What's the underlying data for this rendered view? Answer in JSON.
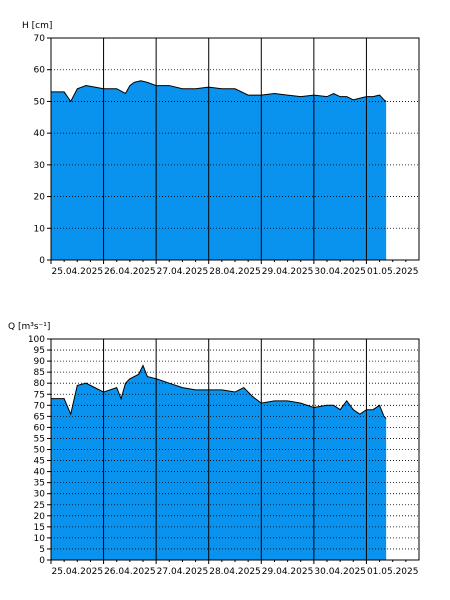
{
  "chart_data": [
    {
      "type": "area",
      "ylabel": "H [cm]",
      "ylim": [
        0,
        70
      ],
      "yticks": [
        0,
        10,
        20,
        30,
        40,
        50,
        60,
        70
      ],
      "xlim": [
        "2025-04-25T00:00",
        "2025-05-02T00:00"
      ],
      "xtick_labels": [
        "25.04.2025",
        "26.04.2025",
        "27.04.2025",
        "28.04.2025",
        "29.04.2025",
        "30.04.2025",
        "01.05.2025"
      ],
      "grid": true,
      "fill_color": "#0a93ee",
      "line_color": "#000000",
      "x": [
        "2025-04-25T00:00",
        "2025-04-25T06:00",
        "2025-04-25T09:00",
        "2025-04-25T12:00",
        "2025-04-25T16:00",
        "2025-04-25T20:00",
        "2025-04-26T00:00",
        "2025-04-26T06:00",
        "2025-04-26T10:00",
        "2025-04-26T12:00",
        "2025-04-26T14:00",
        "2025-04-26T17:00",
        "2025-04-26T20:00",
        "2025-04-27T00:00",
        "2025-04-27T06:00",
        "2025-04-27T12:00",
        "2025-04-27T18:00",
        "2025-04-28T00:00",
        "2025-04-28T06:00",
        "2025-04-28T12:00",
        "2025-04-28T18:00",
        "2025-04-29T00:00",
        "2025-04-29T06:00",
        "2025-04-29T12:00",
        "2025-04-29T18:00",
        "2025-04-30T00:00",
        "2025-04-30T06:00",
        "2025-04-30T09:00",
        "2025-04-30T12:00",
        "2025-04-30T15:00",
        "2025-04-30T18:00",
        "2025-04-30T21:00",
        "2025-05-01T00:00",
        "2025-05-01T03:00",
        "2025-05-01T06:00",
        "2025-05-01T08:00",
        "2025-05-01T09:00"
      ],
      "y": [
        53,
        53,
        50,
        54,
        55,
        54.5,
        54,
        54,
        52.5,
        55,
        56,
        56.5,
        56,
        55,
        55,
        54,
        54,
        54.5,
        54,
        54,
        52,
        52,
        52.5,
        52,
        51.5,
        52,
        51.5,
        52.5,
        51.5,
        51.5,
        50.5,
        51,
        51.5,
        51.5,
        52,
        50.5,
        50
      ]
    },
    {
      "type": "area",
      "ylabel": "Q [m³s⁻¹]",
      "ylim": [
        0,
        100
      ],
      "yticks": [
        0,
        5,
        10,
        15,
        20,
        25,
        30,
        35,
        40,
        45,
        50,
        55,
        60,
        65,
        70,
        75,
        80,
        85,
        90,
        95,
        100
      ],
      "xlim": [
        "2025-04-25T00:00",
        "2025-05-02T00:00"
      ],
      "xtick_labels": [
        "25.04.2025",
        "26.04.2025",
        "27.04.2025",
        "28.04.2025",
        "29.04.2025",
        "30.04.2025",
        "01.05.2025"
      ],
      "grid": true,
      "fill_color": "#0a93ee",
      "line_color": "#000000",
      "x": [
        "2025-04-25T00:00",
        "2025-04-25T06:00",
        "2025-04-25T09:00",
        "2025-04-25T12:00",
        "2025-04-25T16:00",
        "2025-04-25T20:00",
        "2025-04-26T00:00",
        "2025-04-26T06:00",
        "2025-04-26T08:00",
        "2025-04-26T10:00",
        "2025-04-26T12:00",
        "2025-04-26T16:00",
        "2025-04-26T18:00",
        "2025-04-26T20:00",
        "2025-04-27T00:00",
        "2025-04-27T06:00",
        "2025-04-27T12:00",
        "2025-04-27T18:00",
        "2025-04-28T00:00",
        "2025-04-28T06:00",
        "2025-04-28T12:00",
        "2025-04-28T16:00",
        "2025-04-28T20:00",
        "2025-04-29T00:00",
        "2025-04-29T06:00",
        "2025-04-29T12:00",
        "2025-04-29T18:00",
        "2025-04-30T00:00",
        "2025-04-30T06:00",
        "2025-04-30T09:00",
        "2025-04-30T12:00",
        "2025-04-30T15:00",
        "2025-04-30T18:00",
        "2025-04-30T21:00",
        "2025-05-01T00:00",
        "2025-05-01T03:00",
        "2025-05-01T06:00",
        "2025-05-01T08:00",
        "2025-05-01T09:00"
      ],
      "y": [
        73,
        73,
        66,
        79,
        80,
        78,
        76,
        78,
        73,
        80,
        82,
        84,
        88,
        83,
        82,
        80,
        78,
        77,
        77,
        77,
        76,
        78,
        74,
        71,
        72,
        72,
        71,
        69,
        70,
        70,
        68,
        72,
        68,
        66,
        68,
        68,
        70,
        65,
        64
      ]
    }
  ]
}
